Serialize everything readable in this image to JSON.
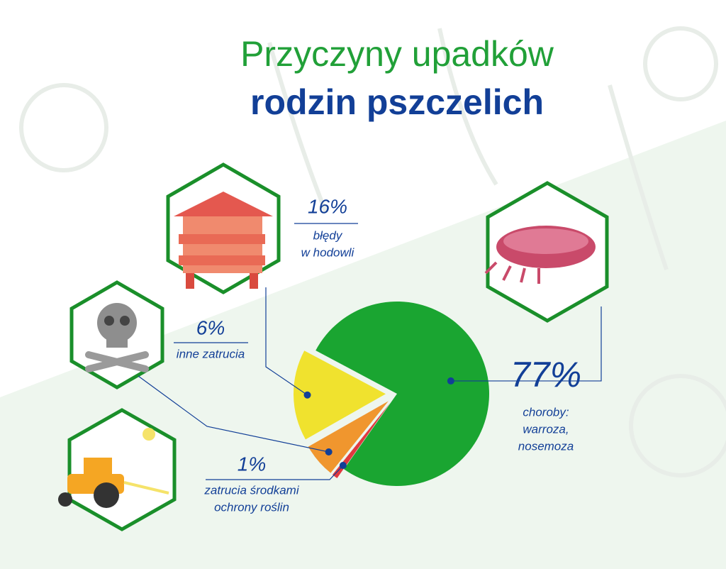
{
  "chart_data": {
    "type": "pie",
    "title": "Przyczyny upadków",
    "subtitle": "rodzin pszczelich",
    "categories": [
      [
        "choroby:",
        "warroza,",
        "nosemoza"
      ],
      [
        "zatrucia środkami",
        "ochrony roślin"
      ],
      [
        "inne zatrucia"
      ],
      [
        "błędy",
        "w hodowli"
      ]
    ],
    "values": [
      77,
      1,
      6,
      16
    ],
    "value_labels": [
      "77%",
      "1%",
      "6%",
      "16%"
    ],
    "colors": [
      "#1aa531",
      "#e0393f",
      "#f0962e",
      "#f0e22e"
    ]
  }
}
